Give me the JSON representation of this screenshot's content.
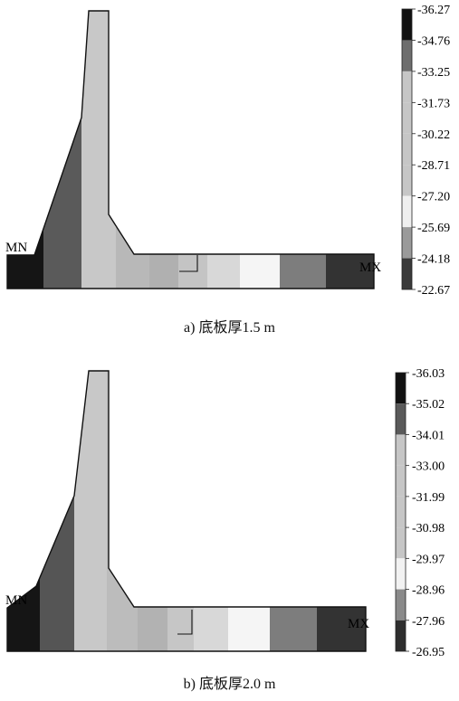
{
  "figures": [
    {
      "id": "a",
      "caption": "a) 底板厚1.5 m",
      "legend_ticks": [
        "-36.27",
        "-34.76",
        "-33.25",
        "-31.73",
        "-30.22",
        "-28.71",
        "-27.20",
        "-25.69",
        "-24.18",
        "-22.67"
      ],
      "legend_colors": [
        "#111111",
        "#6e6e6e",
        "#c6c6c6",
        "#c6c6c6",
        "#c6c6c6",
        "#c6c6c6",
        "#efefef",
        "#9a9a9a",
        "#3a3a3a"
      ],
      "markers": {
        "min": "MN",
        "max": "MX"
      },
      "bands": [
        {
          "name": "band-1",
          "color": "#151515"
        },
        {
          "name": "band-2",
          "color": "#5a5a5a"
        },
        {
          "name": "band-3",
          "color": "#c8c8c8"
        },
        {
          "name": "band-4",
          "color": "#b8b8b8"
        },
        {
          "name": "band-5",
          "color": "#b0b0b0"
        },
        {
          "name": "band-6",
          "color": "#c4c4c4"
        },
        {
          "name": "band-7",
          "color": "#d8d8d8"
        },
        {
          "name": "band-8",
          "color": "#f5f5f5"
        },
        {
          "name": "band-9",
          "color": "#7d7d7d"
        },
        {
          "name": "band-10",
          "color": "#333333"
        }
      ]
    },
    {
      "id": "b",
      "caption": "b) 底板厚2.0 m",
      "legend_ticks": [
        "-36.03",
        "-35.02",
        "-34.01",
        "-33.00",
        "-31.99",
        "-30.98",
        "-29.97",
        "-28.96",
        "-27.96",
        "-26.95"
      ],
      "legend_colors": [
        "#111111",
        "#5a5a5a",
        "#c6c6c6",
        "#c6c6c6",
        "#c6c6c6",
        "#c6c6c6",
        "#f2f2f2",
        "#8a8a8a",
        "#2e2e2e"
      ],
      "markers": {
        "min": "MN",
        "max": "MX"
      },
      "bands": [
        {
          "name": "band-1",
          "color": "#151515"
        },
        {
          "name": "band-2",
          "color": "#555555"
        },
        {
          "name": "band-3",
          "color": "#c8c8c8"
        },
        {
          "name": "band-4",
          "color": "#bcbcbc"
        },
        {
          "name": "band-5",
          "color": "#b2b2b2"
        },
        {
          "name": "band-6",
          "color": "#c6c6c6"
        },
        {
          "name": "band-7",
          "color": "#d8d8d8"
        },
        {
          "name": "band-8",
          "color": "#f5f5f5"
        },
        {
          "name": "band-9",
          "color": "#7d7d7d"
        },
        {
          "name": "band-10",
          "color": "#333333"
        }
      ]
    }
  ]
}
